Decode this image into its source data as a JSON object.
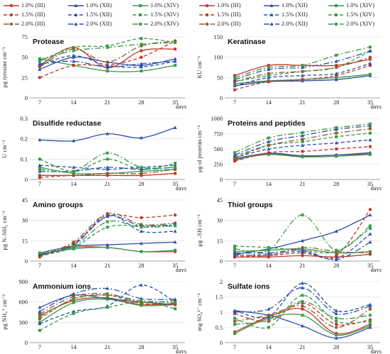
{
  "legend": [
    {
      "label": "1.0% (III)",
      "color": "#c0392b",
      "dash": "",
      "marker": "circle"
    },
    {
      "label": "1.0% (XII)",
      "color": "#2e4fa8",
      "dash": "",
      "marker": "triangle"
    },
    {
      "label": "1.0% (XIV)",
      "color": "#3a9a4a",
      "dash": "",
      "marker": "square"
    },
    {
      "label": "1.5% (III)",
      "color": "#c0392b",
      "dash": "5,3",
      "marker": "circle"
    },
    {
      "label": "1.5% (XII)",
      "color": "#2e4fa8",
      "dash": "5,3",
      "marker": "triangle"
    },
    {
      "label": "1.5% (XIV)",
      "color": "#3a9a4a",
      "dash": "5,3",
      "marker": "square"
    },
    {
      "label": "2.0% (III)",
      "color": "#8b5a2b",
      "dash": "8,3,2,3",
      "marker": "circle"
    },
    {
      "label": "2.0% (XII)",
      "color": "#2e4fa8",
      "dash": "8,3,2,3",
      "marker": "triangle"
    },
    {
      "label": "2.0% (XIV)",
      "color": "#3a9a4a",
      "dash": "8,3,2,3",
      "marker": "square"
    }
  ],
  "chart_data": [
    {
      "type": "line",
      "title": "Protease",
      "ylabel": "μg tyrosine cm⁻³",
      "xlabel": "days",
      "x": [
        7,
        14,
        21,
        28,
        35
      ],
      "ylim": [
        0,
        75
      ],
      "yticks": [
        0,
        25,
        50,
        75
      ],
      "series": [
        {
          "name": "1.0% (III)",
          "values": [
            40,
            62,
            37,
            58,
            60
          ]
        },
        {
          "name": "1.0% (XII)",
          "values": [
            35,
            50,
            44,
            40,
            48
          ]
        },
        {
          "name": "1.0% (XIV)",
          "values": [
            48,
            40,
            33,
            33,
            40
          ]
        },
        {
          "name": "1.5% (III)",
          "values": [
            25,
            40,
            40,
            50,
            70
          ]
        },
        {
          "name": "1.5% (XII)",
          "values": [
            40,
            52,
            40,
            38,
            45
          ]
        },
        {
          "name": "1.5% (XIV)",
          "values": [
            45,
            62,
            64,
            73,
            68
          ]
        },
        {
          "name": "2.0% (III)",
          "values": [
            38,
            60,
            44,
            64,
            70
          ]
        },
        {
          "name": "2.0% (XII)",
          "values": [
            42,
            45,
            38,
            42,
            45
          ]
        },
        {
          "name": "2.0% (XIV)",
          "values": [
            47,
            58,
            62,
            66,
            68
          ]
        }
      ]
    },
    {
      "type": "line",
      "title": "Keratinase",
      "ylabel": "KU cm⁻³",
      "xlabel": "days",
      "x": [
        7,
        14,
        21,
        28,
        35
      ],
      "ylim": [
        0,
        150
      ],
      "yticks": [
        0,
        50,
        100,
        150
      ],
      "series": [
        {
          "name": "1.0% (III)",
          "values": [
            55,
            80,
            80,
            80,
            95
          ]
        },
        {
          "name": "1.0% (XII)",
          "values": [
            30,
            40,
            42,
            45,
            55
          ]
        },
        {
          "name": "1.0% (XIV)",
          "values": [
            35,
            42,
            45,
            50,
            58
          ]
        },
        {
          "name": "1.5% (III)",
          "values": [
            20,
            40,
            45,
            55,
            80
          ]
        },
        {
          "name": "1.5% (XII)",
          "values": [
            30,
            50,
            55,
            60,
            85
          ]
        },
        {
          "name": "1.5% (XIV)",
          "values": [
            40,
            55,
            65,
            75,
            115
          ]
        },
        {
          "name": "2.0% (III)",
          "values": [
            40,
            60,
            65,
            75,
            100
          ]
        },
        {
          "name": "2.0% (XII)",
          "values": [
            45,
            70,
            75,
            90,
            115
          ]
        },
        {
          "name": "2.0% (XIV)",
          "values": [
            50,
            75,
            80,
            105,
            125
          ]
        }
      ]
    },
    {
      "type": "line",
      "title": "Disulfide reductase",
      "ylabel": "U cm⁻³",
      "xlabel": "days",
      "x": [
        7,
        14,
        21,
        28,
        35
      ],
      "ylim": [
        0,
        0.3
      ],
      "yticks": [
        0,
        0.1,
        0.2,
        0.3
      ],
      "series": [
        {
          "name": "1.0% (III)",
          "values": [
            0.02,
            0.02,
            0.02,
            0.02,
            0.03
          ]
        },
        {
          "name": "1.0% (XII)",
          "values": [
            0.195,
            0.19,
            0.225,
            0.205,
            0.255
          ]
        },
        {
          "name": "1.0% (XIV)",
          "values": [
            0.06,
            0.03,
            0.03,
            0.04,
            0.05
          ]
        },
        {
          "name": "1.5% (III)",
          "values": [
            0.01,
            0.02,
            0.02,
            0.02,
            0.03
          ]
        },
        {
          "name": "1.5% (XII)",
          "values": [
            0.07,
            0.06,
            0.05,
            0.06,
            0.07
          ]
        },
        {
          "name": "1.5% (XIV)",
          "values": [
            0.1,
            0.04,
            0.1,
            0.05,
            0.08
          ]
        },
        {
          "name": "2.0% (III)",
          "values": [
            0.02,
            0.02,
            0.03,
            0.03,
            0.05
          ]
        },
        {
          "name": "2.0% (XII)",
          "values": [
            0.04,
            0.04,
            0.06,
            0.05,
            0.06
          ]
        },
        {
          "name": "2.0% (XIV)",
          "values": [
            0.05,
            0.04,
            0.13,
            0.06,
            0.06
          ]
        }
      ]
    },
    {
      "type": "line",
      "title": "Proteins and peptides",
      "ylabel": "μg of proteins cm⁻³",
      "xlabel": "days",
      "x": [
        7,
        14,
        21,
        28,
        35
      ],
      "ylim": [
        0,
        1000
      ],
      "yticks": [
        0,
        250,
        500,
        750,
        1000
      ],
      "series": [
        {
          "name": "1.0% (III)",
          "values": [
            320,
            420,
            380,
            400,
            420
          ]
        },
        {
          "name": "1.0% (XII)",
          "values": [
            340,
            430,
            390,
            400,
            440
          ]
        },
        {
          "name": "1.0% (XIV)",
          "values": [
            330,
            410,
            370,
            380,
            410
          ]
        },
        {
          "name": "1.5% (III)",
          "values": [
            300,
            440,
            460,
            500,
            540
          ]
        },
        {
          "name": "1.5% (XII)",
          "values": [
            360,
            500,
            560,
            600,
            650
          ]
        },
        {
          "name": "1.5% (XIV)",
          "values": [
            380,
            560,
            620,
            700,
            760
          ]
        },
        {
          "name": "2.0% (III)",
          "values": [
            350,
            560,
            660,
            760,
            830
          ]
        },
        {
          "name": "2.0% (XII)",
          "values": [
            400,
            620,
            720,
            820,
            880
          ]
        },
        {
          "name": "2.0% (XIV)",
          "values": [
            440,
            680,
            770,
            850,
            910
          ]
        }
      ]
    },
    {
      "type": "line",
      "title": "Amino groups",
      "ylabel": "μg N–NH₂ cm⁻³",
      "xlabel": "days",
      "x": [
        7,
        14,
        21,
        28,
        35
      ],
      "ylim": [
        0,
        45
      ],
      "yticks": [
        0,
        15,
        30,
        45
      ],
      "series": [
        {
          "name": "1.0% (III)",
          "values": [
            4,
            10,
            10,
            7,
            7
          ]
        },
        {
          "name": "1.0% (XII)",
          "values": [
            6,
            11,
            12,
            13,
            14
          ]
        },
        {
          "name": "1.0% (XIV)",
          "values": [
            5,
            9,
            10,
            7,
            8
          ]
        },
        {
          "name": "1.5% (III)",
          "values": [
            3,
            13,
            33,
            32,
            34
          ]
        },
        {
          "name": "1.5% (XII)",
          "values": [
            5,
            12,
            34,
            22,
            22
          ]
        },
        {
          "name": "1.5% (XIV)",
          "values": [
            4,
            10,
            25,
            26,
            26
          ]
        },
        {
          "name": "2.0% (III)",
          "values": [
            4,
            14,
            35,
            27,
            28
          ]
        },
        {
          "name": "2.0% (XII)",
          "values": [
            5,
            12,
            33,
            26,
            27
          ]
        },
        {
          "name": "2.0% (XIV)",
          "values": [
            6,
            11,
            29,
            25,
            26
          ]
        }
      ]
    },
    {
      "type": "line",
      "title": "Thiol groups",
      "ylabel": "μg –SH cm⁻³",
      "xlabel": "days",
      "x": [
        7,
        14,
        21,
        28,
        35
      ],
      "ylim": [
        0,
        45
      ],
      "yticks": [
        0,
        15,
        30,
        45
      ],
      "series": [
        {
          "name": "1.0% (III)",
          "values": [
            3,
            3,
            4,
            3,
            5
          ]
        },
        {
          "name": "1.0% (XII)",
          "values": [
            5,
            9,
            15,
            22,
            34
          ]
        },
        {
          "name": "1.0% (XIV)",
          "values": [
            7,
            8,
            9,
            6,
            7
          ]
        },
        {
          "name": "1.5% (III)",
          "values": [
            3,
            4,
            6,
            4,
            38
          ]
        },
        {
          "name": "1.5% (XII)",
          "values": [
            4,
            5,
            7,
            2,
            20
          ]
        },
        {
          "name": "1.5% (XIV)",
          "values": [
            11,
            10,
            8,
            7,
            24
          ]
        },
        {
          "name": "2.0% (III)",
          "values": [
            5,
            4,
            10,
            7,
            6
          ]
        },
        {
          "name": "2.0% (XII)",
          "values": [
            6,
            6,
            8,
            1,
            14
          ]
        },
        {
          "name": "2.0% (XIV)",
          "values": [
            9,
            8,
            34,
            8,
            26
          ]
        }
      ]
    },
    {
      "type": "line",
      "title": "Ammonium ions",
      "ylabel": "μg NH₄⁺ cm⁻³",
      "xlabel": "days",
      "x": [
        7,
        14,
        21,
        28,
        35
      ],
      "ylim": [
        0,
        900
      ],
      "yticks": [
        0,
        300,
        600,
        900
      ],
      "series": [
        {
          "name": "1.0% (III)",
          "values": [
            400,
            620,
            660,
            560,
            580
          ]
        },
        {
          "name": "1.0% (XII)",
          "values": [
            520,
            700,
            650,
            600,
            560
          ]
        },
        {
          "name": "1.0% (XIV)",
          "values": [
            300,
            590,
            640,
            550,
            560
          ]
        },
        {
          "name": "1.5% (III)",
          "values": [
            350,
            650,
            700,
            580,
            560
          ]
        },
        {
          "name": "1.5% (XII)",
          "values": [
            280,
            460,
            540,
            850,
            600
          ]
        },
        {
          "name": "1.5% (XIV)",
          "values": [
            180,
            430,
            520,
            600,
            500
          ]
        },
        {
          "name": "2.0% (III)",
          "values": [
            420,
            680,
            720,
            600,
            620
          ]
        },
        {
          "name": "2.0% (XII)",
          "values": [
            460,
            720,
            800,
            650,
            640
          ]
        },
        {
          "name": "2.0% (XIV)",
          "values": [
            380,
            640,
            700,
            620,
            590
          ]
        }
      ]
    },
    {
      "type": "line",
      "title": "Sulfate ions",
      "ylabel": "mg SO₄²⁻ cm⁻³",
      "xlabel": "days",
      "x": [
        7,
        14,
        21,
        28,
        35
      ],
      "ylim": [
        0,
        2
      ],
      "yticks": [
        0,
        0.5,
        1,
        1.5,
        2
      ],
      "series": [
        {
          "name": "1.0% (III)",
          "values": [
            0.35,
            0.85,
            1.1,
            0.3,
            0.6
          ]
        },
        {
          "name": "1.0% (XII)",
          "values": [
            1.05,
            0.9,
            0.55,
            0.15,
            0.5
          ]
        },
        {
          "name": "1.0% (XIV)",
          "values": [
            0.3,
            0.8,
            0.9,
            0.25,
            0.55
          ]
        },
        {
          "name": "1.5% (III)",
          "values": [
            0.95,
            0.7,
            1.3,
            0.6,
            0.75
          ]
        },
        {
          "name": "1.5% (XII)",
          "values": [
            1.05,
            0.85,
            1.95,
            1.05,
            1.25
          ]
        },
        {
          "name": "1.5% (XIV)",
          "values": [
            0.8,
            0.5,
            1.55,
            0.7,
            0.7
          ]
        },
        {
          "name": "2.0% (III)",
          "values": [
            0.7,
            0.9,
            1.2,
            0.5,
            1.1
          ]
        },
        {
          "name": "2.0% (XII)",
          "values": [
            1.0,
            1.1,
            1.8,
            0.95,
            1.2
          ]
        },
        {
          "name": "2.0% (XIV)",
          "values": [
            0.6,
            0.75,
            1.35,
            0.8,
            0.9
          ]
        }
      ]
    }
  ]
}
